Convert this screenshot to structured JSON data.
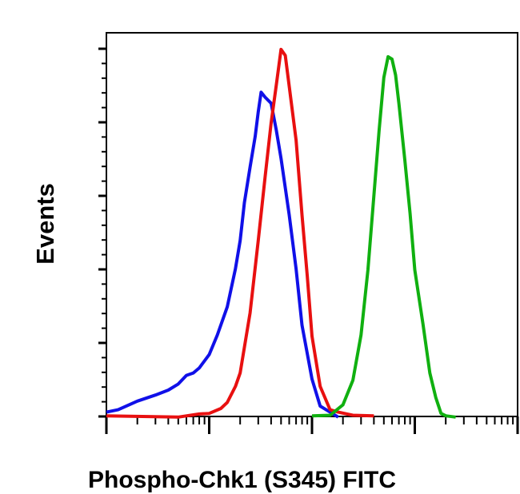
{
  "chart_data": {
    "type": "line",
    "ylabel": "Events",
    "xlabel": "Phospho-Chk1 (S345) FITC",
    "x_scale": "log",
    "xlim": [
      1,
      10000
    ],
    "ylim": [
      0,
      100
    ],
    "grid": false,
    "series": [
      {
        "color": "#1010e8",
        "x": [
          1,
          1.3,
          2,
          3,
          4,
          5,
          6,
          7,
          8,
          10,
          12,
          15,
          18,
          20,
          22,
          25,
          28,
          30,
          32,
          35,
          40,
          45,
          50,
          60,
          70,
          80,
          100,
          120,
          150,
          180
        ],
        "y": [
          1,
          2,
          4,
          6,
          7,
          9,
          11,
          12,
          13,
          17,
          22,
          30,
          40,
          48,
          58,
          68,
          76,
          83,
          88,
          87,
          85,
          78,
          70,
          55,
          40,
          25,
          10,
          3,
          1,
          0
        ]
      },
      {
        "color": "#e81010",
        "x": [
          1,
          5,
          8,
          10,
          13,
          15,
          18,
          20,
          25,
          30,
          35,
          40,
          45,
          50,
          55,
          60,
          70,
          80,
          90,
          100,
          120,
          150,
          180,
          250,
          400
        ],
        "y": [
          0,
          0,
          0.5,
          1,
          2,
          4,
          8,
          12,
          28,
          48,
          65,
          80,
          90,
          100,
          98,
          90,
          75,
          55,
          38,
          22,
          8,
          2,
          1,
          0.5,
          0
        ]
      },
      {
        "color": "#10b010",
        "x": [
          100,
          150,
          200,
          250,
          300,
          350,
          400,
          450,
          500,
          550,
          600,
          650,
          700,
          800,
          900,
          1000,
          1200,
          1400,
          1600,
          1800,
          2000,
          2500
        ],
        "y": [
          0,
          0.5,
          3,
          10,
          22,
          40,
          60,
          78,
          92,
          98,
          97,
          93,
          85,
          70,
          55,
          40,
          25,
          12,
          5,
          1,
          0,
          0
        ]
      }
    ]
  }
}
